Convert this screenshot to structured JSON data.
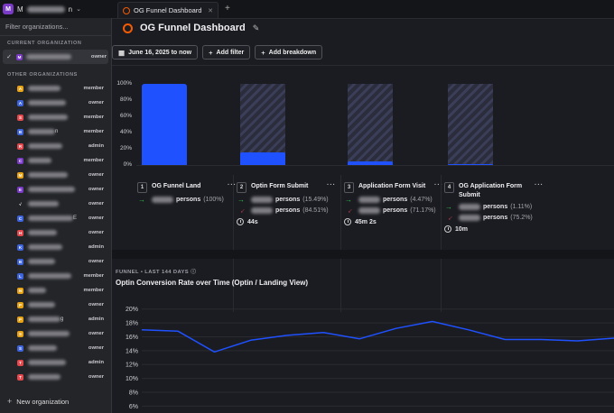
{
  "topbar": {
    "org_badge": "M",
    "org_name_initial": "M",
    "org_name_tail": "n",
    "tab_title": "OG Funnel Dashboard"
  },
  "dropdown": {
    "filter_placeholder": "Filter organizations...",
    "current_label": "CURRENT ORGANIZATION",
    "current_org": {
      "badge": "M",
      "role": "owner"
    },
    "other_label": "OTHER ORGANIZATIONS",
    "orgs": [
      {
        "badge": "A",
        "color": "#e8a317",
        "role": "member"
      },
      {
        "badge": "A",
        "color": "#3d63dd",
        "role": "owner"
      },
      {
        "badge": "S",
        "color": "#e5484d",
        "role": "member"
      },
      {
        "badge": "B",
        "color": "#3d63dd",
        "role": "member"
      },
      {
        "badge": "R",
        "color": "#e5484d",
        "role": "admin"
      },
      {
        "badge": "C",
        "color": "#7a3cc6",
        "role": "member"
      },
      {
        "badge": "M",
        "color": "#e8a317",
        "role": "owner"
      },
      {
        "badge": "E",
        "color": "#7a3cc6",
        "role": "owner"
      },
      {
        "badge": "√",
        "color": "#242529",
        "role": "owner"
      },
      {
        "badge": "C",
        "color": "#3d63dd",
        "role": "owner"
      },
      {
        "badge": "H",
        "color": "#e5484d",
        "role": "owner"
      },
      {
        "badge": "K",
        "color": "#3d63dd",
        "role": "admin"
      },
      {
        "badge": "B",
        "color": "#3d63dd",
        "role": "owner"
      },
      {
        "badge": "L",
        "color": "#3d63dd",
        "role": "member"
      },
      {
        "badge": "N",
        "color": "#e8a317",
        "role": "member"
      },
      {
        "badge": "P",
        "color": "#e8a317",
        "role": "owner"
      },
      {
        "badge": "P",
        "color": "#e8a317",
        "role": "admin"
      },
      {
        "badge": "S",
        "color": "#e8a317",
        "role": "owner"
      },
      {
        "badge": "S",
        "color": "#3d63dd",
        "role": "owner"
      },
      {
        "badge": "T",
        "color": "#e5484d",
        "role": "admin"
      },
      {
        "badge": "T",
        "color": "#e5484d",
        "role": "owner"
      }
    ],
    "org_text_tails": {
      "3": "n",
      "9": "E",
      "16": "g"
    },
    "new_org_label": "New organization"
  },
  "page": {
    "title": "OG Funnel Dashboard",
    "date_filter": "June 16, 2025 to now",
    "add_filter": "Add filter",
    "add_breakdown": "Add breakdown"
  },
  "funnel": {
    "y_ticks": [
      "100%",
      "80%",
      "60%",
      "40%",
      "20%",
      "0%"
    ],
    "steps": [
      {
        "num": "1",
        "name": "OG Funnel Land",
        "conversion": 100,
        "metrics": [
          {
            "direction": "up",
            "label": "persons",
            "pct": "(100%)"
          }
        ],
        "time": ""
      },
      {
        "num": "2",
        "name": "Optin Form Submit",
        "conversion": 15.49,
        "metrics": [
          {
            "direction": "up",
            "label": "persons",
            "pct": "(15.49%)"
          },
          {
            "direction": "down",
            "label": "persons",
            "pct": "(84.51%)"
          }
        ],
        "time": "44s"
      },
      {
        "num": "3",
        "name": "Application Form Visit",
        "conversion": 4.47,
        "metrics": [
          {
            "direction": "up",
            "label": "persons",
            "pct": "(4.47%)"
          },
          {
            "direction": "down",
            "label": "persons",
            "pct": "(71.17%)"
          }
        ],
        "time": "45m 2s"
      },
      {
        "num": "4",
        "name": "OG Application Form Submit",
        "conversion": 1.11,
        "metrics": [
          {
            "direction": "up",
            "label": "persons",
            "pct": "(1.11%)"
          },
          {
            "direction": "down",
            "label": "persons",
            "pct": "(75.2%)"
          }
        ],
        "time": "10m"
      }
    ]
  },
  "trend": {
    "kicker": "FUNNEL • LAST 144 DAYS",
    "title": "Optin Conversion Rate over Time (Optin / Landing View)"
  },
  "chart_data": {
    "type": "line",
    "title": "Optin Conversion Rate over Time (Optin / Landing View)",
    "y_ticks": [
      "20%",
      "18%",
      "16%",
      "14%",
      "12%",
      "10%",
      "8%",
      "6%"
    ],
    "ylim": [
      5,
      21
    ],
    "series": [
      {
        "color": "#1f51ff",
        "values": [
          17.0,
          16.8,
          13.8,
          15.5,
          16.2,
          16.6,
          15.7,
          17.2,
          18.2,
          17.0,
          15.6,
          15.6,
          15.4,
          15.8
        ]
      }
    ]
  }
}
